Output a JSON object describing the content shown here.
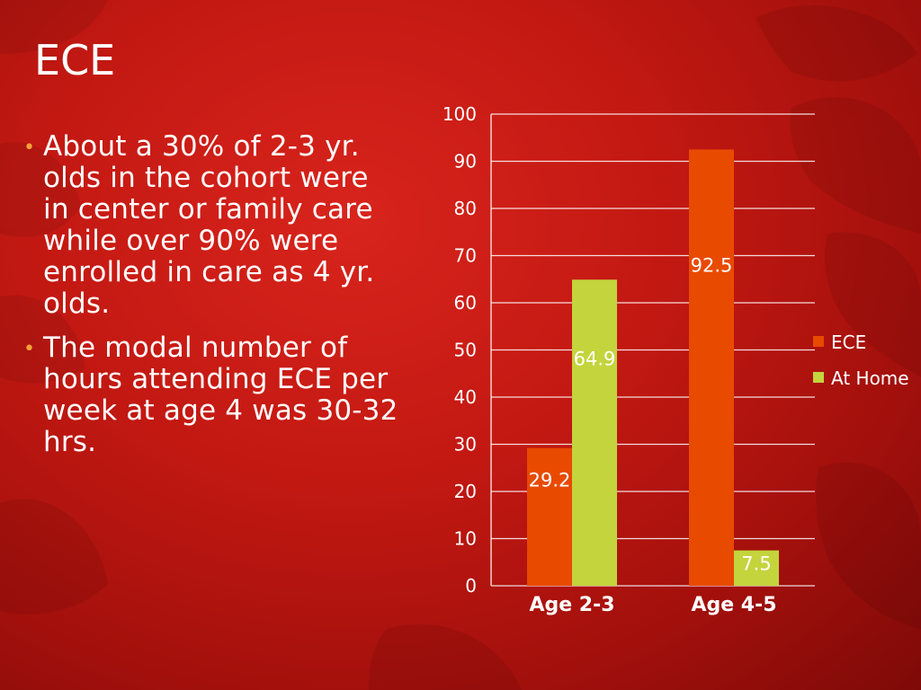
{
  "slide": {
    "title": "ECE",
    "bullets": [
      "About a 30% of 2-3 yr. olds in the cohort were in center or family care while over 90% were enrolled in care as 4 yr. olds.",
      "The modal number of hours attending ECE per week at age 4 was 30-32 hrs."
    ],
    "bullet_color": "#f5a13a"
  },
  "chart_data": {
    "type": "bar",
    "categories": [
      "Age 2-3",
      "Age 4-5"
    ],
    "series": [
      {
        "name": "ECE",
        "values": [
          29.2,
          92.5
        ],
        "labels": [
          "29.2",
          "92.5"
        ],
        "color": "#e84a00"
      },
      {
        "name": "At Home",
        "values": [
          64.9,
          7.5
        ],
        "labels": [
          "64.9",
          "7.5"
        ],
        "color": "#c3d43c"
      }
    ],
    "yticks": [
      "0",
      "10",
      "20",
      "30",
      "40",
      "50",
      "60",
      "70",
      "80",
      "90",
      "100"
    ],
    "ylim": [
      0,
      100
    ],
    "grid": true,
    "legend": "right"
  }
}
